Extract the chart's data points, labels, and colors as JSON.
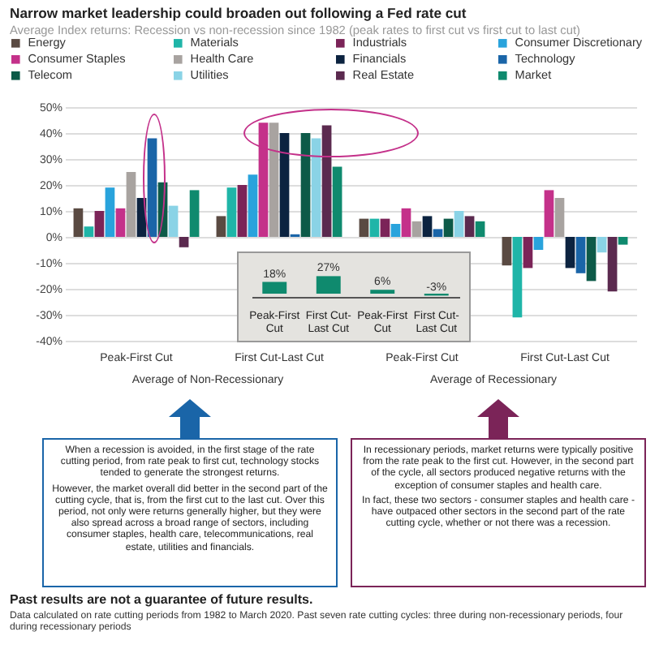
{
  "chart_data": [
    {
      "type": "bar",
      "title": "Narrow market leadership could broaden out following a Fed rate cut",
      "subtitle": "Average Index returns: Recession vs non-recession since 1982 (peak rates to first cut vs first cut to last cut)",
      "categories": [
        "Peak-First Cut",
        "First Cut-Last Cut",
        "Peak-First Cut",
        "First Cut-Last Cut"
      ],
      "series": [
        {
          "name": "Energy",
          "color": "#5a4a42",
          "values": [
            11,
            8,
            7,
            -11
          ]
        },
        {
          "name": "Materials",
          "color": "#1fb5a8",
          "values": [
            4,
            19,
            7,
            -31
          ]
        },
        {
          "name": "Industrials",
          "color": "#7b2458",
          "values": [
            10,
            20,
            7,
            -12
          ]
        },
        {
          "name": "Consumer Discretionary",
          "color": "#29a3dc",
          "values": [
            19,
            24,
            5,
            -5
          ]
        },
        {
          "name": "Consumer Staples",
          "color": "#c4318a",
          "values": [
            11,
            44,
            11,
            18
          ]
        },
        {
          "name": "Health Care",
          "color": "#a8a3a0",
          "values": [
            25,
            44,
            6,
            15
          ]
        },
        {
          "name": "Financials",
          "color": "#0c2340",
          "values": [
            15,
            40,
            8,
            -12
          ]
        },
        {
          "name": "Technology",
          "color": "#1a65a8",
          "values": [
            38,
            1,
            3,
            -14
          ]
        },
        {
          "name": "Telecom",
          "color": "#0d5a48",
          "values": [
            21,
            40,
            7,
            -17
          ]
        },
        {
          "name": "Utilities",
          "color": "#8ad3e6",
          "values": [
            12,
            38,
            10,
            -6
          ]
        },
        {
          "name": "Real Estate",
          "color": "#5b2a4f",
          "values": [
            -4,
            43,
            8,
            -21
          ]
        },
        {
          "name": "Market",
          "color": "#0f8a6e",
          "values": [
            18,
            27,
            6,
            -3
          ]
        }
      ],
      "ylim": [
        -40,
        50
      ],
      "yticks": [
        {
          "value": 50,
          "label": "50%"
        },
        {
          "value": 40,
          "label": "40%"
        },
        {
          "value": 30,
          "label": "30%"
        },
        {
          "value": 20,
          "label": "20%"
        },
        {
          "value": 10,
          "label": "10%"
        },
        {
          "value": 0,
          "label": "0%"
        },
        {
          "value": -10,
          "label": "-10%"
        },
        {
          "value": -20,
          "label": "-20%"
        },
        {
          "value": -30,
          "label": "-30%"
        },
        {
          "value": -40,
          "label": "-40%"
        }
      ],
      "grid": "y",
      "legend": "top",
      "annotations": [
        "Average of Non-Recessionary",
        "Average of Recessionary",
        "When a recession is avoided, in the first stage of the rate cutting period, from rate peak to first cut, technology stocks tended to generate the strongest returns.",
        "However, the market overall did better in the second part of the cutting cycle, that is, from the first cut to the last cut. Over this period, not only were returns generally higher, but they were also spread across a broad range of sectors, including consumer staples, health care, telecommunications, real estate, utilities and financials.",
        "In recessionary periods, market returns were typically positive from the rate peak to the first cut. However, in the second part of the cycle, all sectors produced negative returns with the exception of consumer staples and health care.",
        "In fact, these two sectors - consumer staples and health care - have outpaced other sectors in the second part of the rate cutting cycle, whether or not there was a recession.",
        "Past results are not a guarantee of future results.",
        "Data calculated on rate cutting periods from 1982 to March 2020. Past seven rate cutting cycles: three during non-recessionary periods, four during recessionary periods"
      ]
    },
    {
      "type": "bar",
      "categories": [
        "Peak-First Cut",
        "First Cut-Last Cut",
        "Peak-First Cut",
        "First Cut-Last Cut"
      ],
      "values": [
        18,
        27,
        6,
        -3
      ],
      "color": "#0f8a6e",
      "value_labels": [
        "18%",
        "27%",
        "6%",
        "-3%"
      ]
    }
  ]
}
